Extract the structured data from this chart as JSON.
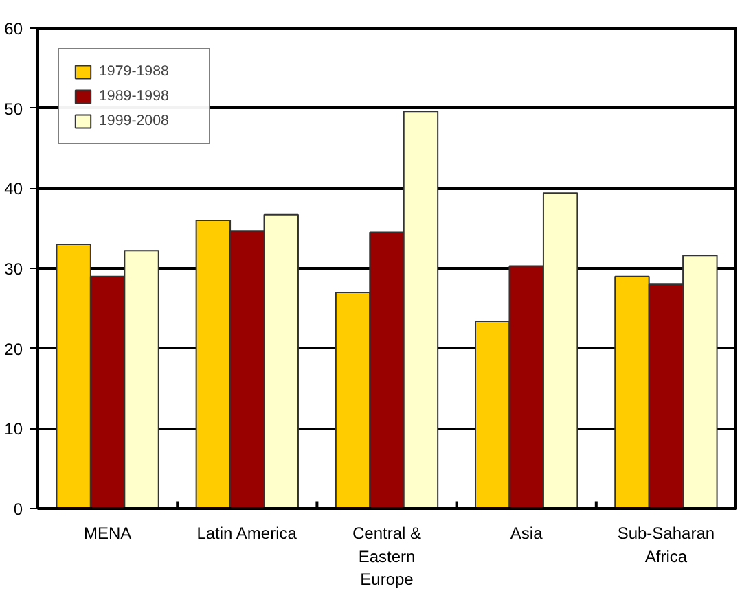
{
  "chart_data": {
    "type": "bar",
    "categories": [
      "MENA",
      "Latin America",
      "Central &\nEastern\nEurope",
      "Asia",
      "Sub-Saharan\nAfrica"
    ],
    "series": [
      {
        "name": "1979-1988",
        "color": "#ffcc00",
        "values": [
          33,
          36,
          27,
          23.4,
          29
        ]
      },
      {
        "name": "1989-1998",
        "color": "#990000",
        "values": [
          29,
          34.7,
          34.5,
          30.3,
          28
        ]
      },
      {
        "name": "1999-2008",
        "color": "#ffffcc",
        "values": [
          32.2,
          36.7,
          49.6,
          39.4,
          31.6
        ]
      }
    ],
    "ylim": [
      0,
      60
    ],
    "yticks": [
      0,
      10,
      20,
      30,
      40,
      50,
      60
    ],
    "grid": "y",
    "legend": "top left"
  }
}
